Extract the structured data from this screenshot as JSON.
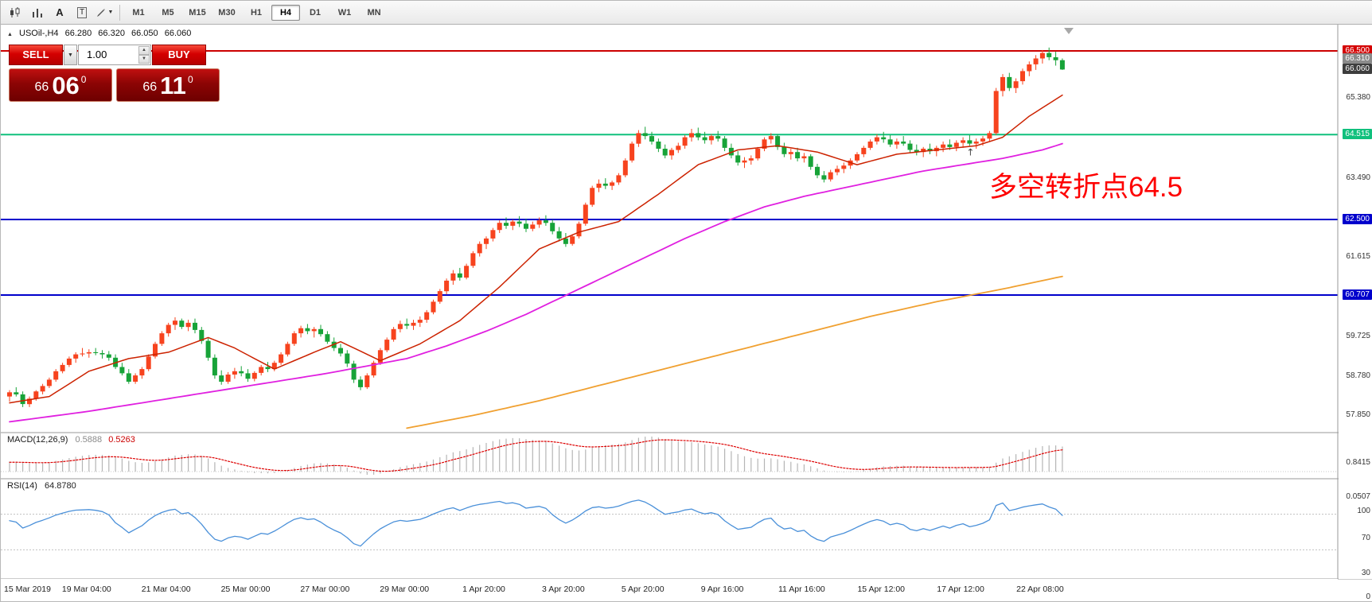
{
  "toolbar": {
    "tool_a": "A",
    "tool_t": "T",
    "timeframes": [
      "M1",
      "M5",
      "M15",
      "M30",
      "H1",
      "H4",
      "D1",
      "W1",
      "MN"
    ],
    "active_timeframe": "H4"
  },
  "header": {
    "symbol": "USOil-,H4",
    "open": "66.280",
    "high": "66.320",
    "low": "66.050",
    "close": "66.060"
  },
  "trade_panel": {
    "sell_label": "SELL",
    "buy_label": "BUY",
    "volume": "1.00",
    "bid": {
      "big": "66",
      "pips": "06",
      "pipette": "0"
    },
    "ask": {
      "big": "66",
      "pips": "11",
      "pipette": "0"
    }
  },
  "annotation": {
    "text": "多空转折点64.5",
    "color": "#fe0000"
  },
  "macd": {
    "label": "MACD(12,26,9)",
    "main_value": "0.5888",
    "signal_value": "0.5263",
    "scale_top": "0.8415",
    "scale_bottom": "0.0507"
  },
  "rsi": {
    "label": "RSI(14)",
    "value": "64.8780",
    "scale": [
      "100",
      "70",
      "30",
      "0"
    ],
    "levels": [
      70,
      30
    ]
  },
  "price_scale": {
    "plain_ticks": [
      "65.380",
      "63.490",
      "61.615",
      "59.725",
      "58.780",
      "57.850"
    ],
    "badges": [
      {
        "text": "66.500",
        "price": 66.5,
        "bg": "#d40000"
      },
      {
        "text": "66.310",
        "price": 66.31,
        "bg": "#8a8a8a"
      },
      {
        "text": "66.060",
        "price": 66.06,
        "bg": "#3d3d3d"
      },
      {
        "text": "64.515",
        "price": 64.515,
        "bg": "#10c07d"
      },
      {
        "text": "62.500",
        "price": 62.5,
        "bg": "#0000cc"
      },
      {
        "text": "60.707",
        "price": 60.707,
        "bg": "#0000cc"
      }
    ]
  },
  "chart_data": {
    "type": "candlestick",
    "symbol": "USOil-",
    "timeframe": "H4",
    "price_range": [
      57.5,
      66.75
    ],
    "colors": {
      "up": "#f7431e",
      "down": "#17a338",
      "ma_fast": "#cc2200",
      "ma_mid": "#e020e0",
      "ma_slow": "#f0a030",
      "rsi_line": "#4a90d9",
      "macd_hist": "#b5b5b5",
      "macd_signal": "#dd0000"
    },
    "hlines": [
      {
        "price": 66.5,
        "color": "#cc0000",
        "width": 2
      },
      {
        "price": 64.515,
        "color": "#10c07d",
        "width": 2
      },
      {
        "price": 62.5,
        "color": "#0000cc",
        "width": 2
      },
      {
        "price": 60.707,
        "color": "#0000cc",
        "width": 2
      }
    ],
    "candles_ohlc": [
      [
        58.3,
        58.45,
        58.18,
        58.4
      ],
      [
        58.4,
        58.52,
        58.3,
        58.35
      ],
      [
        58.35,
        58.42,
        58.05,
        58.12
      ],
      [
        58.12,
        58.3,
        58.05,
        58.25
      ],
      [
        58.25,
        58.45,
        58.2,
        58.42
      ],
      [
        58.42,
        58.6,
        58.35,
        58.55
      ],
      [
        58.55,
        58.75,
        58.5,
        58.7
      ],
      [
        58.7,
        58.95,
        58.65,
        58.9
      ],
      [
        58.9,
        59.1,
        58.85,
        59.05
      ],
      [
        59.05,
        59.25,
        59.0,
        59.2
      ],
      [
        59.2,
        59.35,
        59.1,
        59.3
      ],
      [
        59.3,
        59.45,
        59.25,
        59.32
      ],
      [
        59.32,
        59.42,
        59.22,
        59.35
      ],
      [
        59.35,
        59.45,
        59.28,
        59.33
      ],
      [
        59.33,
        59.4,
        59.2,
        59.3
      ],
      [
        59.3,
        59.38,
        59.15,
        59.22
      ],
      [
        59.22,
        59.3,
        58.95,
        59.0
      ],
      [
        59.0,
        59.1,
        58.8,
        58.85
      ],
      [
        58.85,
        58.95,
        58.6,
        58.65
      ],
      [
        58.65,
        58.85,
        58.6,
        58.8
      ],
      [
        58.8,
        59.0,
        58.72,
        58.95
      ],
      [
        58.95,
        59.3,
        58.9,
        59.25
      ],
      [
        59.25,
        59.6,
        59.2,
        59.55
      ],
      [
        59.55,
        59.85,
        59.5,
        59.8
      ],
      [
        59.8,
        60.05,
        59.72,
        60.0
      ],
      [
        60.0,
        60.18,
        59.88,
        60.1
      ],
      [
        60.1,
        60.15,
        59.9,
        59.95
      ],
      [
        59.95,
        60.12,
        59.85,
        60.05
      ],
      [
        60.05,
        60.15,
        59.8,
        59.88
      ],
      [
        59.88,
        59.95,
        59.55,
        59.62
      ],
      [
        59.62,
        59.68,
        59.15,
        59.22
      ],
      [
        59.22,
        59.3,
        58.72,
        58.8
      ],
      [
        58.8,
        58.92,
        58.58,
        58.65
      ],
      [
        58.65,
        58.88,
        58.6,
        58.82
      ],
      [
        58.82,
        58.98,
        58.72,
        58.9
      ],
      [
        58.9,
        59.02,
        58.78,
        58.85
      ],
      [
        58.85,
        58.95,
        58.65,
        58.72
      ],
      [
        58.72,
        58.9,
        58.66,
        58.86
      ],
      [
        58.86,
        59.05,
        58.8,
        59.0
      ],
      [
        59.0,
        59.12,
        58.88,
        58.95
      ],
      [
        58.95,
        59.15,
        58.9,
        59.1
      ],
      [
        59.1,
        59.35,
        59.05,
        59.3
      ],
      [
        59.3,
        59.6,
        59.25,
        59.55
      ],
      [
        59.55,
        59.85,
        59.5,
        59.8
      ],
      [
        59.8,
        59.98,
        59.7,
        59.92
      ],
      [
        59.92,
        60.02,
        59.78,
        59.85
      ],
      [
        59.85,
        59.95,
        59.7,
        59.9
      ],
      [
        59.9,
        60.0,
        59.72,
        59.78
      ],
      [
        59.78,
        59.85,
        59.55,
        59.6
      ],
      [
        59.6,
        59.7,
        59.38,
        59.45
      ],
      [
        59.45,
        59.55,
        59.25,
        59.32
      ],
      [
        59.32,
        59.4,
        59.0,
        59.08
      ],
      [
        59.08,
        59.15,
        58.62,
        58.7
      ],
      [
        58.7,
        58.78,
        58.45,
        58.52
      ],
      [
        58.52,
        58.85,
        58.48,
        58.8
      ],
      [
        58.8,
        59.15,
        58.75,
        59.1
      ],
      [
        59.1,
        59.45,
        59.05,
        59.4
      ],
      [
        59.4,
        59.7,
        59.35,
        59.65
      ],
      [
        59.65,
        59.95,
        59.6,
        59.9
      ],
      [
        59.9,
        60.1,
        59.82,
        60.02
      ],
      [
        60.02,
        60.15,
        59.9,
        59.98
      ],
      [
        59.98,
        60.12,
        59.88,
        60.05
      ],
      [
        60.05,
        60.2,
        59.95,
        60.12
      ],
      [
        60.12,
        60.35,
        60.05,
        60.3
      ],
      [
        60.3,
        60.6,
        60.25,
        60.55
      ],
      [
        60.55,
        60.85,
        60.5,
        60.8
      ],
      [
        60.8,
        61.1,
        60.72,
        61.05
      ],
      [
        61.05,
        61.3,
        60.95,
        61.22
      ],
      [
        61.22,
        61.35,
        61.05,
        61.12
      ],
      [
        61.12,
        61.45,
        61.08,
        61.4
      ],
      [
        61.4,
        61.75,
        61.35,
        61.7
      ],
      [
        61.7,
        61.98,
        61.62,
        61.92
      ],
      [
        61.92,
        62.1,
        61.8,
        62.05
      ],
      [
        62.05,
        62.3,
        61.98,
        62.25
      ],
      [
        62.25,
        62.48,
        62.18,
        62.42
      ],
      [
        62.42,
        62.55,
        62.28,
        62.35
      ],
      [
        62.35,
        62.5,
        62.25,
        62.45
      ],
      [
        62.45,
        62.58,
        62.32,
        62.4
      ],
      [
        62.4,
        62.52,
        62.2,
        62.28
      ],
      [
        62.28,
        62.45,
        62.22,
        62.38
      ],
      [
        62.38,
        62.55,
        62.3,
        62.48
      ],
      [
        62.48,
        62.6,
        62.35,
        62.42
      ],
      [
        62.42,
        62.5,
        62.15,
        62.22
      ],
      [
        62.22,
        62.32,
        61.98,
        62.05
      ],
      [
        62.05,
        62.18,
        61.85,
        61.92
      ],
      [
        61.92,
        62.15,
        61.88,
        62.1
      ],
      [
        62.1,
        62.45,
        62.05,
        62.4
      ],
      [
        62.4,
        62.9,
        62.35,
        62.85
      ],
      [
        62.85,
        63.3,
        62.8,
        63.25
      ],
      [
        63.25,
        63.45,
        63.15,
        63.35
      ],
      [
        63.35,
        63.48,
        63.22,
        63.3
      ],
      [
        63.3,
        63.42,
        63.2,
        63.38
      ],
      [
        63.38,
        63.6,
        63.32,
        63.55
      ],
      [
        63.55,
        63.95,
        63.5,
        63.9
      ],
      [
        63.9,
        64.35,
        63.85,
        64.3
      ],
      [
        64.3,
        64.62,
        64.22,
        64.55
      ],
      [
        64.55,
        64.7,
        64.4,
        64.48
      ],
      [
        64.48,
        64.58,
        64.28,
        64.35
      ],
      [
        64.35,
        64.42,
        64.1,
        64.18
      ],
      [
        64.18,
        64.28,
        63.95,
        64.02
      ],
      [
        64.02,
        64.2,
        63.92,
        64.15
      ],
      [
        64.15,
        64.32,
        64.08,
        64.25
      ],
      [
        64.25,
        64.5,
        64.18,
        64.45
      ],
      [
        64.45,
        64.65,
        64.35,
        64.55
      ],
      [
        64.55,
        64.68,
        64.38,
        64.45
      ],
      [
        64.45,
        64.58,
        64.3,
        64.38
      ],
      [
        64.38,
        64.52,
        64.28,
        64.48
      ],
      [
        64.48,
        64.6,
        64.35,
        64.42
      ],
      [
        64.42,
        64.48,
        64.12,
        64.2
      ],
      [
        64.2,
        64.3,
        63.95,
        64.02
      ],
      [
        64.02,
        64.12,
        63.78,
        63.85
      ],
      [
        63.85,
        63.98,
        63.72,
        63.9
      ],
      [
        63.9,
        64.02,
        63.8,
        63.95
      ],
      [
        63.95,
        64.22,
        63.9,
        64.18
      ],
      [
        64.18,
        64.45,
        64.12,
        64.4
      ],
      [
        64.4,
        64.55,
        64.3,
        64.48
      ],
      [
        64.48,
        64.52,
        64.15,
        64.22
      ],
      [
        64.22,
        64.32,
        63.98,
        64.05
      ],
      [
        64.05,
        64.18,
        63.92,
        64.1
      ],
      [
        64.1,
        64.2,
        63.88,
        63.95
      ],
      [
        63.95,
        64.08,
        63.85,
        64.0
      ],
      [
        64.0,
        64.05,
        63.68,
        63.75
      ],
      [
        63.75,
        63.82,
        63.48,
        63.55
      ],
      [
        63.55,
        63.65,
        63.38,
        63.45
      ],
      [
        63.45,
        63.68,
        63.4,
        63.62
      ],
      [
        63.62,
        63.78,
        63.55,
        63.7
      ],
      [
        63.7,
        63.85,
        63.6,
        63.78
      ],
      [
        63.78,
        63.95,
        63.7,
        63.9
      ],
      [
        63.9,
        64.1,
        63.85,
        64.05
      ],
      [
        64.05,
        64.25,
        63.98,
        64.2
      ],
      [
        64.2,
        64.4,
        64.15,
        64.35
      ],
      [
        64.35,
        64.52,
        64.28,
        64.45
      ],
      [
        64.45,
        64.58,
        64.32,
        64.4
      ],
      [
        64.4,
        64.5,
        64.22,
        64.28
      ],
      [
        64.28,
        64.42,
        64.18,
        64.35
      ],
      [
        64.35,
        64.48,
        64.25,
        64.3
      ],
      [
        64.3,
        64.38,
        64.08,
        64.15
      ],
      [
        64.15,
        64.28,
        64.02,
        64.1
      ],
      [
        64.1,
        64.22,
        63.98,
        64.18
      ],
      [
        64.18,
        64.3,
        64.05,
        64.12
      ],
      [
        64.12,
        64.25,
        64.0,
        64.2
      ],
      [
        64.2,
        64.35,
        64.1,
        64.28
      ],
      [
        64.28,
        64.4,
        64.15,
        64.22
      ],
      [
        64.22,
        64.38,
        64.12,
        64.32
      ],
      [
        64.32,
        64.45,
        64.2,
        64.38
      ],
      [
        64.38,
        64.5,
        64.25,
        64.3
      ],
      [
        64.3,
        64.42,
        64.18,
        64.35
      ],
      [
        64.35,
        64.48,
        64.25,
        64.42
      ],
      [
        64.42,
        64.6,
        64.35,
        64.55
      ],
      [
        64.55,
        65.62,
        64.5,
        65.55
      ],
      [
        65.55,
        65.95,
        65.42,
        65.88
      ],
      [
        65.88,
        65.98,
        65.55,
        65.62
      ],
      [
        65.62,
        65.85,
        65.5,
        65.78
      ],
      [
        65.78,
        66.08,
        65.7,
        66.02
      ],
      [
        66.02,
        66.25,
        65.9,
        66.18
      ],
      [
        66.18,
        66.4,
        66.05,
        66.32
      ],
      [
        66.32,
        66.52,
        66.2,
        66.45
      ],
      [
        66.45,
        66.58,
        66.28,
        66.35
      ],
      [
        66.35,
        66.48,
        66.15,
        66.28
      ],
      [
        66.28,
        66.32,
        66.05,
        66.06
      ]
    ],
    "ma_fast_points": [
      [
        0,
        58.15
      ],
      [
        6,
        58.3
      ],
      [
        12,
        58.9
      ],
      [
        18,
        59.2
      ],
      [
        24,
        59.35
      ],
      [
        30,
        59.7
      ],
      [
        34,
        59.45
      ],
      [
        40,
        58.95
      ],
      [
        46,
        59.35
      ],
      [
        50,
        59.6
      ],
      [
        56,
        59.15
      ],
      [
        62,
        59.55
      ],
      [
        68,
        60.1
      ],
      [
        74,
        60.9
      ],
      [
        80,
        61.8
      ],
      [
        86,
        62.2
      ],
      [
        92,
        62.45
      ],
      [
        98,
        63.1
      ],
      [
        104,
        63.8
      ],
      [
        110,
        64.15
      ],
      [
        116,
        64.25
      ],
      [
        122,
        64.1
      ],
      [
        128,
        63.8
      ],
      [
        134,
        64.05
      ],
      [
        140,
        64.15
      ],
      [
        146,
        64.25
      ],
      [
        150,
        64.45
      ],
      [
        154,
        64.95
      ],
      [
        159,
        65.45
      ]
    ],
    "ma_mid_points": [
      [
        0,
        57.7
      ],
      [
        12,
        57.95
      ],
      [
        24,
        58.25
      ],
      [
        36,
        58.55
      ],
      [
        48,
        58.85
      ],
      [
        60,
        59.2
      ],
      [
        66,
        59.5
      ],
      [
        72,
        59.85
      ],
      [
        78,
        60.25
      ],
      [
        84,
        60.7
      ],
      [
        90,
        61.15
      ],
      [
        96,
        61.6
      ],
      [
        102,
        62.05
      ],
      [
        108,
        62.45
      ],
      [
        114,
        62.8
      ],
      [
        120,
        63.05
      ],
      [
        126,
        63.25
      ],
      [
        132,
        63.45
      ],
      [
        138,
        63.65
      ],
      [
        144,
        63.8
      ],
      [
        150,
        63.95
      ],
      [
        156,
        64.15
      ],
      [
        159,
        64.3
      ]
    ],
    "ma_slow_points": [
      [
        60,
        57.55
      ],
      [
        70,
        57.85
      ],
      [
        80,
        58.2
      ],
      [
        90,
        58.6
      ],
      [
        100,
        59.0
      ],
      [
        110,
        59.4
      ],
      [
        120,
        59.8
      ],
      [
        130,
        60.2
      ],
      [
        140,
        60.55
      ],
      [
        150,
        60.85
      ],
      [
        159,
        61.15
      ]
    ],
    "time_labels": [
      {
        "i": 0,
        "label": "15 Mar 2019"
      },
      {
        "i": 12,
        "label": "19 Mar 04:00"
      },
      {
        "i": 24,
        "label": "21 Mar 04:00"
      },
      {
        "i": 36,
        "label": "25 Mar 00:00"
      },
      {
        "i": 48,
        "label": "27 Mar 00:00"
      },
      {
        "i": 60,
        "label": "29 Mar 00:00"
      },
      {
        "i": 72,
        "label": "1 Apr 20:00"
      },
      {
        "i": 84,
        "label": "3 Apr 20:00"
      },
      {
        "i": 96,
        "label": "5 Apr 20:00"
      },
      {
        "i": 108,
        "label": "9 Apr 16:00"
      },
      {
        "i": 120,
        "label": "11 Apr 16:00"
      },
      {
        "i": 132,
        "label": "15 Apr 12:00"
      },
      {
        "i": 144,
        "label": "17 Apr 12:00"
      },
      {
        "i": 156,
        "label": "22 Apr 08:00"
      }
    ],
    "warmup": {
      "start": 57.3,
      "count": 30
    },
    "marker": {
      "index": 145,
      "price": 64.02,
      "glyph": "↑"
    }
  }
}
